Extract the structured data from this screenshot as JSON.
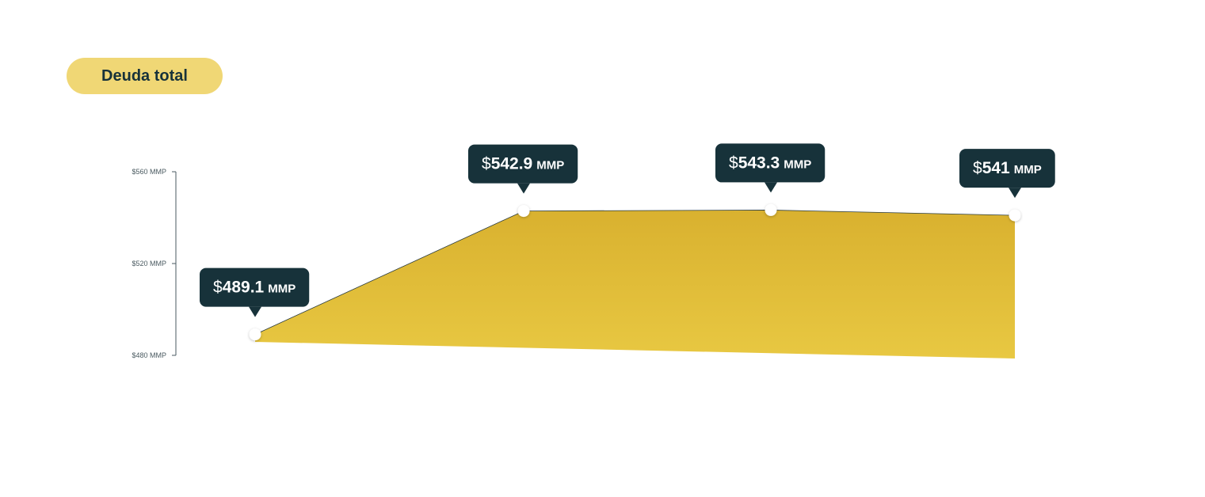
{
  "title": "Deuda total",
  "colors": {
    "title_bg": "#f0d775",
    "title_text": "#17323a",
    "area_top": "#d9b12f",
    "area_bottom": "#e8c842",
    "tooltip_bg": "#17323a",
    "axis": "#4a5a60"
  },
  "chart_data": {
    "type": "area",
    "y_ticks": [
      {
        "value": 560,
        "label": "$560 MMP"
      },
      {
        "value": 520,
        "label": "$520 MMP"
      },
      {
        "value": 480,
        "label": "$480 MMP"
      }
    ],
    "ylim": [
      480,
      560
    ],
    "grid": false,
    "points": [
      {
        "value": 489.1,
        "prefix": "$",
        "number": "489.1",
        "unit": "MMP"
      },
      {
        "value": 542.9,
        "prefix": "$",
        "number": "542.9",
        "unit": "MMP"
      },
      {
        "value": 543.3,
        "prefix": "$",
        "number": "543.3",
        "unit": "MMP"
      },
      {
        "value": 541,
        "prefix": "$",
        "number": "541",
        "unit": "MMP"
      }
    ]
  }
}
